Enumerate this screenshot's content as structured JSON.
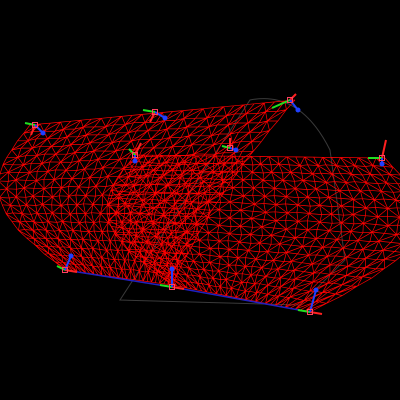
{
  "viewport": {
    "background": "#000000",
    "mesh_color": "#ff0000",
    "shadow_color": "#3a3a3a",
    "baseline_color": "#2020c0"
  },
  "gizmo": {
    "x_axis_color": "#ff2020",
    "y_axis_color": "#20e020",
    "z_axis_color": "#2040ff",
    "handle_color": "#ff4060"
  },
  "gizmo_icon": "transform-axes-icon",
  "mesh_icon": "wireframe-mesh-icon"
}
